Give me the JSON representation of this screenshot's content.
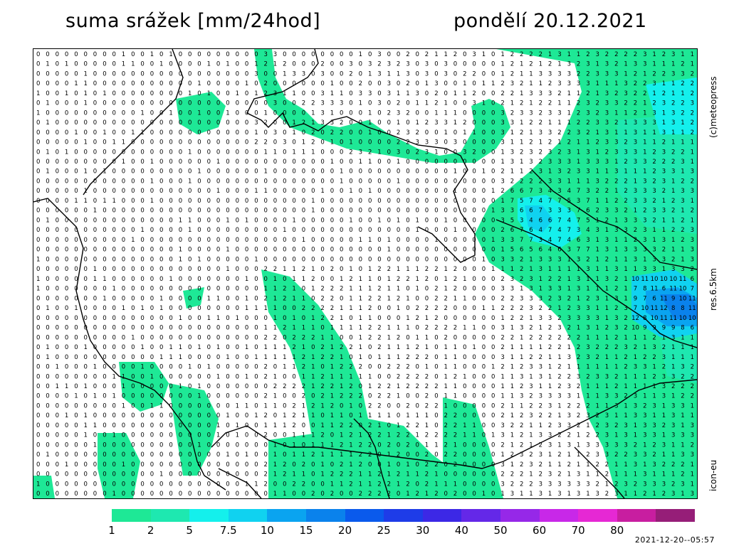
{
  "header": {
    "title": "suma srážek [mm/24hod]",
    "date": "pondělí 20.12.2021"
  },
  "side_labels": {
    "credit": "(c)meteopress",
    "resolution": "res.6.5km",
    "model": "icon-eu"
  },
  "legend": {
    "colors": [
      "#1ee896",
      "#1ee8b0",
      "#14f0ec",
      "#10d2f0",
      "#0aa4f0",
      "#0a82ec",
      "#0a5aec",
      "#1e3ce8",
      "#3c28e6",
      "#6428e8",
      "#9628e8",
      "#c828e8",
      "#e628d4",
      "#c81ea0",
      "#961e78"
    ],
    "labels": [
      "1",
      "2",
      "5",
      "7.5",
      "10",
      "15",
      "20",
      "25",
      "30",
      "40",
      "50",
      "60",
      "70",
      "80"
    ]
  },
  "timestamp": "2021-12-20--05:57",
  "map": {
    "grid_cols": 70,
    "grid_rows": 46,
    "sample_values_visible": [
      "0",
      "1",
      "2",
      "3",
      "4",
      "5",
      "6",
      "7",
      "8",
      "9",
      "10",
      "11",
      "12",
      "13"
    ]
  }
}
